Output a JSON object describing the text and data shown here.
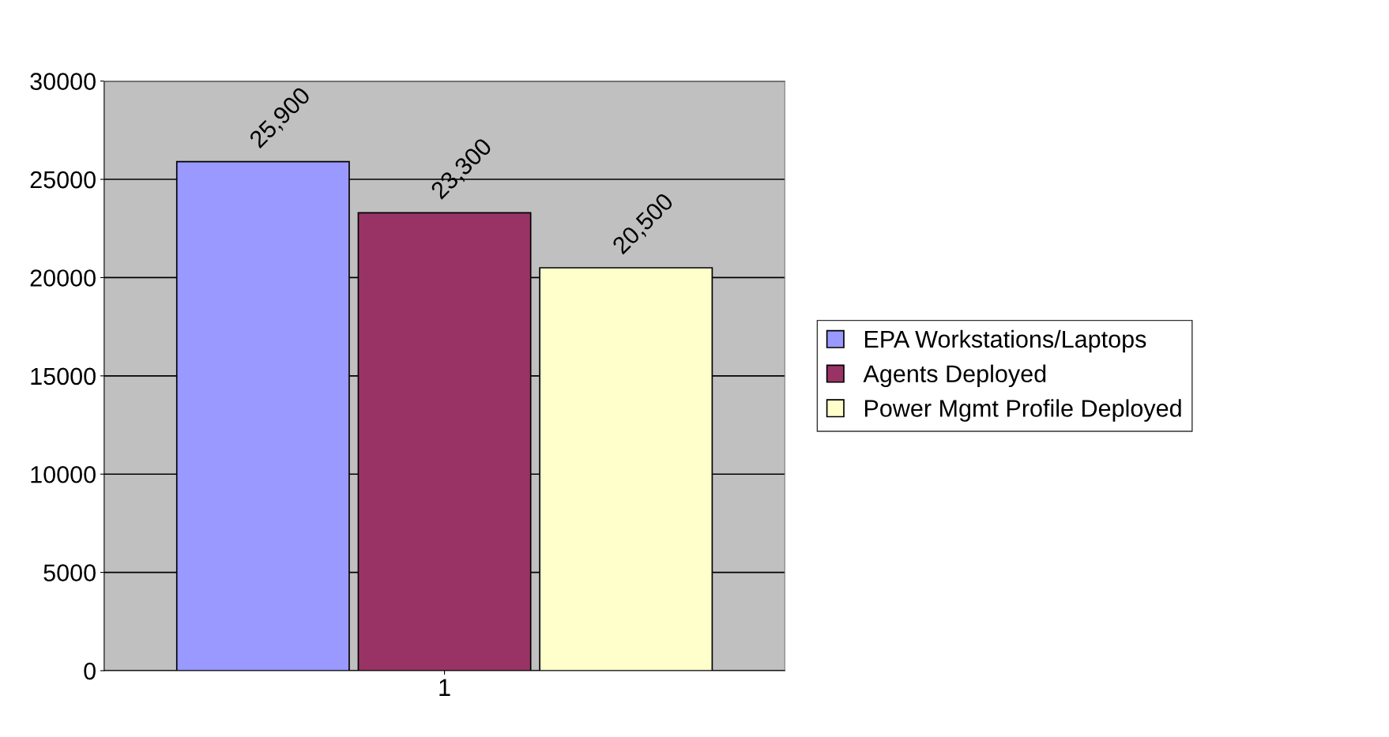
{
  "chart_data": {
    "type": "bar",
    "categories": [
      "1"
    ],
    "series": [
      {
        "name": "EPA Workstations/Laptops",
        "color": "#9999ff",
        "values": [
          25900
        ],
        "value_labels": [
          "25,900"
        ]
      },
      {
        "name": "Agents Deployed",
        "color": "#993366",
        "values": [
          23300
        ],
        "value_labels": [
          "23,300"
        ]
      },
      {
        "name": "Power Mgmt Profile Deployed",
        "color": "#ffffcc",
        "values": [
          20500
        ],
        "value_labels": [
          "20,500"
        ]
      }
    ],
    "ylim": [
      0,
      30000
    ],
    "yticks": [
      0,
      5000,
      10000,
      15000,
      20000,
      25000,
      30000
    ],
    "grid": "y",
    "legend": "right"
  }
}
